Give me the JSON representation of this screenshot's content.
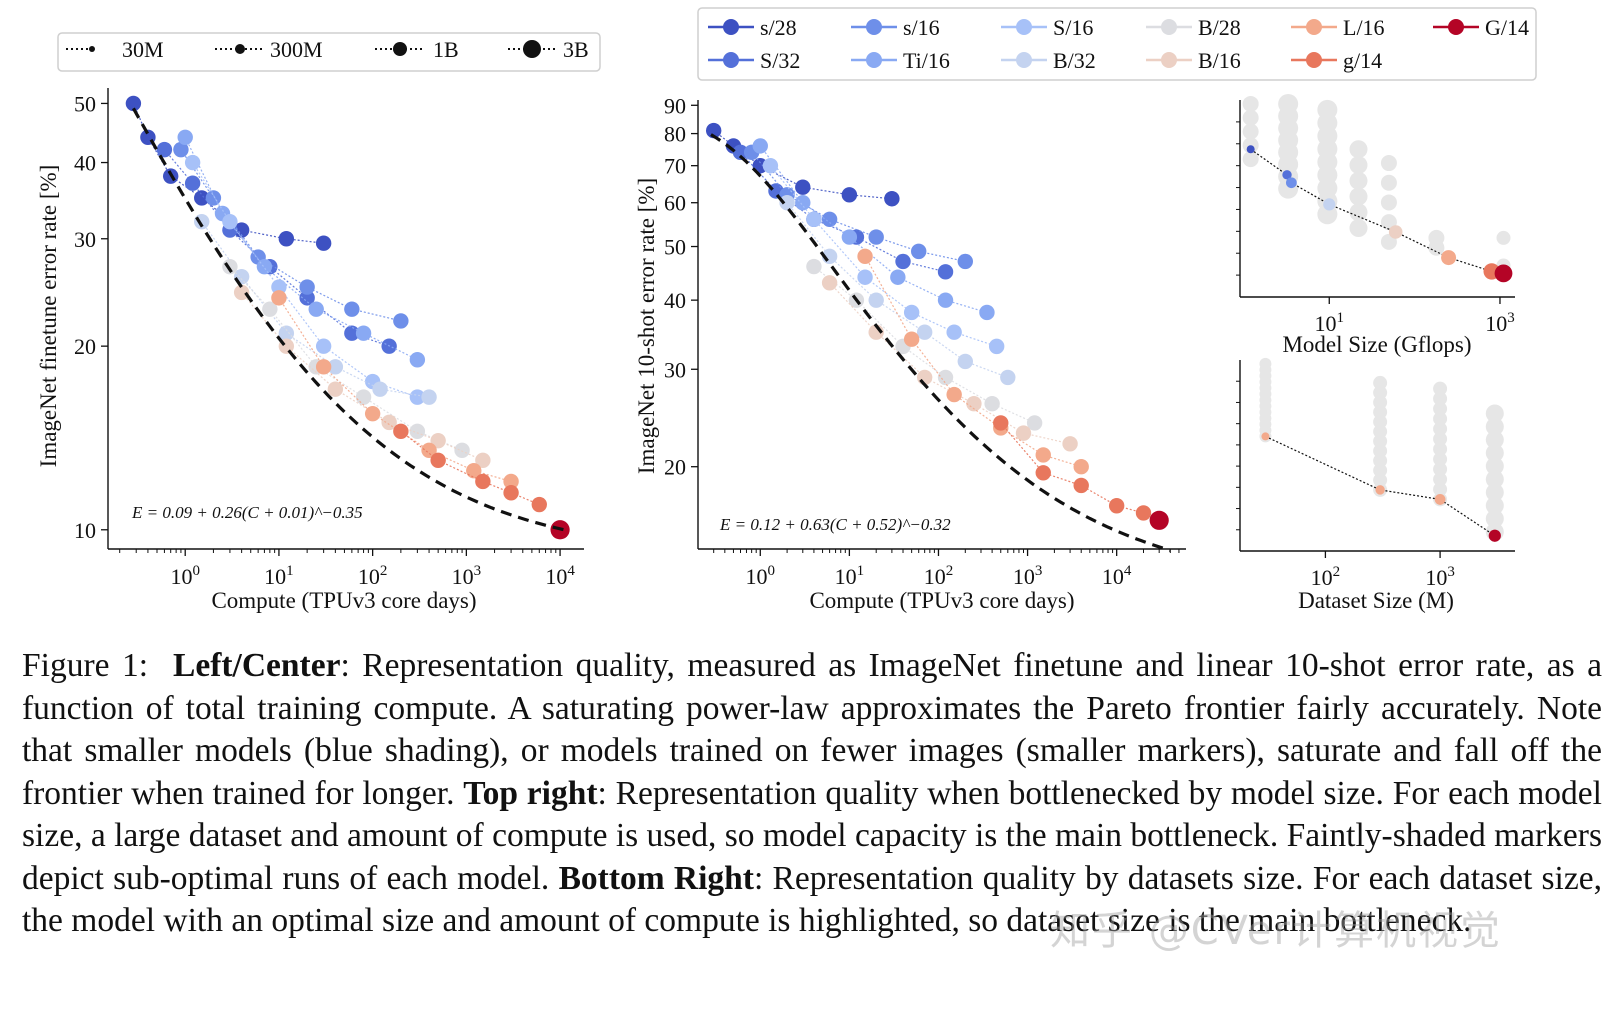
{
  "figure": {
    "size_legend": [
      {
        "label": "30M",
        "marker_scale": 1
      },
      {
        "label": "300M",
        "marker_scale": 2
      },
      {
        "label": "1B",
        "marker_scale": 3
      },
      {
        "label": "3B",
        "marker_scale": 4
      }
    ],
    "model_legend": [
      {
        "label": "s/28",
        "color": "#3d51c2"
      },
      {
        "label": "S/32",
        "color": "#5470d9"
      },
      {
        "label": "s/16",
        "color": "#6e8fe9"
      },
      {
        "label": "Ti/16",
        "color": "#89a9f3"
      },
      {
        "label": "S/16",
        "color": "#a7c1f8"
      },
      {
        "label": "B/32",
        "color": "#c4d3f0"
      },
      {
        "label": "B/28",
        "color": "#dcdde1"
      },
      {
        "label": "B/16",
        "color": "#ecd0c4"
      },
      {
        "label": "L/16",
        "color": "#f3a98b"
      },
      {
        "label": "g/14",
        "color": "#e8775d"
      },
      {
        "label": "G/14",
        "color": "#b40426"
      }
    ]
  },
  "chart_data": [
    {
      "type": "scatter",
      "title": "",
      "xlabel": "Compute (TPUv3 core days)",
      "ylabel": "ImageNet finetune error rate [%]",
      "xscale": "log",
      "yscale": "log",
      "xlim": [
        0.15,
        18000
      ],
      "ylim": [
        9.3,
        53
      ],
      "xticks": [
        {
          "v": 1,
          "base": "10",
          "exp": "0"
        },
        {
          "v": 10,
          "base": "10",
          "exp": "1"
        },
        {
          "v": 100,
          "base": "10",
          "exp": "2"
        },
        {
          "v": 1000,
          "base": "10",
          "exp": "3"
        },
        {
          "v": 10000,
          "base": "10",
          "exp": "4"
        }
      ],
      "yticks": [
        {
          "v": 10,
          "label": "10"
        },
        {
          "v": 20,
          "label": "20"
        },
        {
          "v": 30,
          "label": "30"
        },
        {
          "v": 40,
          "label": "40"
        },
        {
          "v": 50,
          "label": "50"
        }
      ],
      "fit_formula": "E = 0.09 + 0.26(C + 0.01)^−0.35",
      "fit": {
        "a": 0.09,
        "b": 0.26,
        "c": 0.01,
        "k": -0.35,
        "x_range": [
          0.28,
          12000
        ]
      },
      "series": [
        {
          "model": "s/28",
          "size": 3,
          "points": [
            [
              0.28,
              50
            ],
            [
              0.4,
              44
            ],
            [
              0.7,
              38
            ],
            [
              1.5,
              35
            ],
            [
              4,
              31
            ],
            [
              12,
              30
            ],
            [
              30,
              29.5
            ]
          ]
        },
        {
          "model": "S/32",
          "size": 3,
          "points": [
            [
              0.6,
              42
            ],
            [
              1.2,
              37
            ],
            [
              3,
              31
            ],
            [
              8,
              27
            ],
            [
              20,
              24
            ],
            [
              60,
              21
            ],
            [
              150,
              20
            ]
          ]
        },
        {
          "model": "s/16",
          "size": 3,
          "points": [
            [
              0.9,
              42
            ],
            [
              2,
              35
            ],
            [
              6,
              28
            ],
            [
              20,
              25
            ],
            [
              60,
              23
            ],
            [
              200,
              22
            ]
          ]
        },
        {
          "model": "Ti/16",
          "size": 3,
          "points": [
            [
              1.0,
              44
            ],
            [
              2.5,
              33
            ],
            [
              7,
              27
            ],
            [
              25,
              23
            ],
            [
              80,
              21
            ],
            [
              300,
              19
            ]
          ]
        },
        {
          "model": "S/16",
          "size": 3,
          "points": [
            [
              1.2,
              40
            ],
            [
              3,
              32
            ],
            [
              10,
              25
            ],
            [
              30,
              20
            ],
            [
              100,
              17.5
            ],
            [
              300,
              16.5
            ]
          ]
        },
        {
          "model": "B/32",
          "size": 3,
          "points": [
            [
              1.5,
              32
            ],
            [
              4,
              26
            ],
            [
              12,
              21
            ],
            [
              40,
              18.5
            ],
            [
              120,
              17
            ],
            [
              400,
              16.5
            ]
          ]
        },
        {
          "model": "B/28",
          "size": 3,
          "points": [
            [
              3,
              27
            ],
            [
              8,
              23
            ],
            [
              25,
              18.5
            ],
            [
              80,
              16.5
            ],
            [
              300,
              14.5
            ],
            [
              900,
              13.5
            ]
          ]
        },
        {
          "model": "B/16",
          "size": 3,
          "points": [
            [
              4,
              24.5
            ],
            [
              12,
              20
            ],
            [
              40,
              17
            ],
            [
              150,
              15
            ],
            [
              500,
              14
            ],
            [
              1500,
              13
            ]
          ]
        },
        {
          "model": "L/16",
          "size": 3,
          "points": [
            [
              10,
              24
            ],
            [
              30,
              18.5
            ],
            [
              100,
              15.5
            ],
            [
              400,
              13.5
            ],
            [
              1200,
              12.5
            ],
            [
              3000,
              12
            ]
          ]
        },
        {
          "model": "g/14",
          "size": 3,
          "points": [
            [
              200,
              14.5
            ],
            [
              500,
              13
            ],
            [
              1500,
              12
            ],
            [
              3000,
              11.5
            ],
            [
              6000,
              11
            ]
          ]
        },
        {
          "model": "G/14",
          "size": 4,
          "points": [
            [
              10000,
              10
            ]
          ]
        }
      ]
    },
    {
      "type": "scatter",
      "title": "",
      "xlabel": "Compute (TPUv3 core days)",
      "ylabel": "ImageNet 10-shot error rate [%]",
      "xscale": "log",
      "yscale": "log",
      "xlim": [
        0.2,
        60000
      ],
      "ylim": [
        14.2,
        92
      ],
      "xticks": [
        {
          "v": 1,
          "base": "10",
          "exp": "0"
        },
        {
          "v": 10,
          "base": "10",
          "exp": "1"
        },
        {
          "v": 100,
          "base": "10",
          "exp": "2"
        },
        {
          "v": 1000,
          "base": "10",
          "exp": "3"
        },
        {
          "v": 10000,
          "base": "10",
          "exp": "4"
        }
      ],
      "yticks": [
        {
          "v": 20,
          "label": "20"
        },
        {
          "v": 30,
          "label": "30"
        },
        {
          "v": 40,
          "label": "40"
        },
        {
          "v": 50,
          "label": "50"
        },
        {
          "v": 60,
          "label": "60"
        },
        {
          "v": 70,
          "label": "70"
        },
        {
          "v": 80,
          "label": "80"
        },
        {
          "v": 90,
          "label": "90"
        }
      ],
      "fit_formula": "E = 0.12 + 0.63(C + 0.52)^−0.32",
      "fit": {
        "a": 0.12,
        "b": 0.63,
        "c": 0.52,
        "k": -0.32,
        "x_range": [
          0.28,
          40000
        ]
      },
      "series": [
        {
          "model": "s/28",
          "size": 3,
          "points": [
            [
              0.3,
              81
            ],
            [
              0.5,
              76
            ],
            [
              1,
              70
            ],
            [
              3,
              64
            ],
            [
              10,
              62
            ],
            [
              30,
              61
            ]
          ]
        },
        {
          "model": "S/32",
          "size": 3,
          "points": [
            [
              0.6,
              74
            ],
            [
              1.5,
              63
            ],
            [
              4,
              56
            ],
            [
              12,
              52
            ],
            [
              40,
              47
            ],
            [
              120,
              45
            ]
          ]
        },
        {
          "model": "s/16",
          "size": 3,
          "points": [
            [
              0.8,
              74
            ],
            [
              2,
              62
            ],
            [
              6,
              56
            ],
            [
              20,
              52
            ],
            [
              60,
              49
            ],
            [
              200,
              47
            ]
          ]
        },
        {
          "model": "Ti/16",
          "size": 3,
          "points": [
            [
              1,
              76
            ],
            [
              3,
              60
            ],
            [
              10,
              52
            ],
            [
              35,
              44
            ],
            [
              120,
              40
            ],
            [
              350,
              38
            ]
          ]
        },
        {
          "model": "S/16",
          "size": 3,
          "points": [
            [
              1.3,
              70
            ],
            [
              4,
              56
            ],
            [
              15,
              44
            ],
            [
              50,
              38
            ],
            [
              150,
              35
            ],
            [
              450,
              33
            ]
          ]
        },
        {
          "model": "B/32",
          "size": 3,
          "points": [
            [
              2,
              60
            ],
            [
              6,
              48
            ],
            [
              20,
              40
            ],
            [
              70,
              35
            ],
            [
              200,
              31
            ],
            [
              600,
              29
            ]
          ]
        },
        {
          "model": "B/28",
          "size": 3,
          "points": [
            [
              4,
              46
            ],
            [
              12,
              40
            ],
            [
              40,
              33
            ],
            [
              120,
              29
            ],
            [
              400,
              26
            ],
            [
              1200,
              24
            ]
          ]
        },
        {
          "model": "B/16",
          "size": 3,
          "points": [
            [
              6,
              43
            ],
            [
              20,
              35
            ],
            [
              70,
              29
            ],
            [
              250,
              26
            ],
            [
              900,
              23
            ],
            [
              3000,
              22
            ]
          ]
        },
        {
          "model": "L/16",
          "size": 3,
          "points": [
            [
              15,
              48
            ],
            [
              50,
              34
            ],
            [
              150,
              27
            ],
            [
              500,
              23.5
            ],
            [
              1500,
              21
            ],
            [
              4000,
              20
            ]
          ]
        },
        {
          "model": "g/14",
          "size": 3,
          "points": [
            [
              500,
              24
            ],
            [
              1500,
              19.5
            ],
            [
              4000,
              18.5
            ],
            [
              10000,
              17
            ],
            [
              20000,
              16.5
            ]
          ]
        },
        {
          "model": "G/14",
          "size": 4,
          "points": [
            [
              30000,
              16
            ]
          ]
        }
      ]
    },
    {
      "type": "scatter",
      "xlabel": "Model Size (Gflops)",
      "xscale": "log",
      "xticks": [
        {
          "v": 10,
          "base": "10",
          "exp": "1"
        },
        {
          "v": 1000,
          "base": "10",
          "exp": "3"
        }
      ],
      "highlighted": [
        {
          "x": 1.2,
          "y": 0.75,
          "model": "s/28"
        },
        {
          "x": 3.2,
          "y": 0.62,
          "model": "S/32"
        },
        {
          "x": 3.6,
          "y": 0.58,
          "model": "s/16"
        },
        {
          "x": 10,
          "y": 0.47,
          "model": "B/32"
        },
        {
          "x": 60,
          "y": 0.33,
          "model": "B/16"
        },
        {
          "x": 250,
          "y": 0.2,
          "model": "L/16"
        },
        {
          "x": 800,
          "y": 0.13,
          "model": "g/14"
        },
        {
          "x": 1100,
          "y": 0.12,
          "model": "G/14"
        }
      ]
    },
    {
      "type": "scatter",
      "xlabel": "Dataset Size (M)",
      "xscale": "log",
      "xticks": [
        {
          "v": 100,
          "base": "10",
          "exp": "2"
        },
        {
          "v": 1000,
          "base": "10",
          "exp": "3"
        }
      ],
      "highlighted": [
        {
          "x": 30,
          "y": 0.6,
          "model": "L/16"
        },
        {
          "x": 300,
          "y": 0.32,
          "model": "L/16"
        },
        {
          "x": 1000,
          "y": 0.27,
          "model": "L/16"
        },
        {
          "x": 3000,
          "y": 0.08,
          "model": "G/14"
        }
      ]
    }
  ],
  "caption": {
    "label": "Figure 1:",
    "p1_bold": "Left/Center",
    "p1": ": Representation quality, measured as ImageNet finetune and linear 10-shot error rate, as a function of total training compute. A saturating power-law approximates the Pareto frontier fairly accurately. Note that smaller models (blue shading), or models trained on fewer images (smaller markers), saturate and fall off the frontier when trained for longer. ",
    "p2_bold": "Top right",
    "p2": ": Representation quality when bottlenecked by model size. For each model size, a large dataset and amount of compute is used, so model capacity is the main bottleneck. Faintly-shaded markers depict sub-optimal runs of each model. ",
    "p3_bold": "Bottom Right",
    "p3": ": Representation quality by datasets size. For each dataset size, the model with an optimal size and amount of compute is highlighted, so dataset size is the main bottleneck."
  },
  "watermark": "知乎 @CVer计算机视觉"
}
